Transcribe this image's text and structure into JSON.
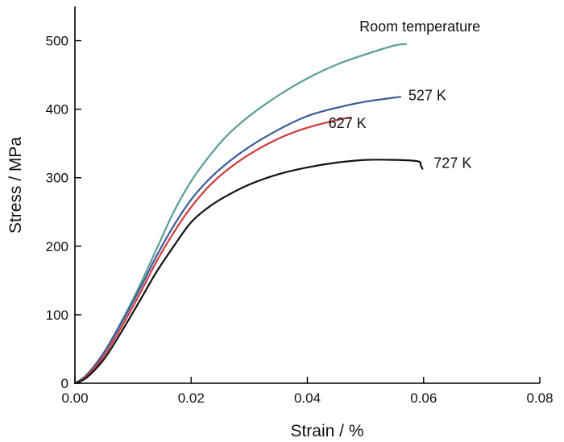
{
  "chart_data": {
    "type": "line",
    "title": "",
    "xlabel": "Strain / %",
    "ylabel": "Stress / MPa",
    "xlim": [
      0,
      0.08
    ],
    "ylim": [
      0,
      550
    ],
    "xticks": [
      0,
      0.02,
      0.04,
      0.06,
      0.08
    ],
    "xtick_labels": [
      "0.00",
      "0.02",
      "0.04",
      "0.06",
      "0.08"
    ],
    "yticks": [
      0,
      100,
      200,
      300,
      400,
      500
    ],
    "ytick_labels": [
      "0",
      "100",
      "200",
      "300",
      "400",
      "500"
    ],
    "grid": false,
    "legend": "none",
    "series": [
      {
        "name": "Room temperature",
        "color": "#5a9e96",
        "x": [
          0,
          0.002,
          0.005,
          0.008,
          0.011,
          0.014,
          0.017,
          0.02,
          0.023,
          0.026,
          0.03,
          0.035,
          0.04,
          0.045,
          0.05,
          0.055,
          0.057
        ],
        "y": [
          0,
          12,
          45,
          90,
          140,
          195,
          250,
          295,
          330,
          360,
          390,
          420,
          445,
          465,
          480,
          493,
          495
        ]
      },
      {
        "name": "527 K",
        "color": "#3a5a9a",
        "x": [
          0,
          0.002,
          0.005,
          0.008,
          0.011,
          0.014,
          0.017,
          0.02,
          0.023,
          0.026,
          0.03,
          0.035,
          0.04,
          0.045,
          0.05,
          0.056
        ],
        "y": [
          0,
          12,
          45,
          88,
          135,
          185,
          230,
          268,
          297,
          320,
          345,
          370,
          390,
          402,
          411,
          418
        ]
      },
      {
        "name": "627 K",
        "color": "#d03a3a",
        "x": [
          0,
          0.002,
          0.005,
          0.008,
          0.011,
          0.014,
          0.017,
          0.02,
          0.023,
          0.026,
          0.03,
          0.035,
          0.04,
          0.045,
          0.0475
        ],
        "y": [
          0,
          10,
          40,
          82,
          128,
          177,
          220,
          257,
          287,
          310,
          334,
          357,
          373,
          384,
          388
        ]
      },
      {
        "name": "727 K",
        "color": "#111111",
        "x": [
          0,
          0.002,
          0.005,
          0.008,
          0.011,
          0.014,
          0.017,
          0.02,
          0.023,
          0.026,
          0.03,
          0.035,
          0.04,
          0.045,
          0.05,
          0.055,
          0.059,
          0.0595,
          0.0598
        ],
        "y": [
          0,
          8,
          35,
          75,
          118,
          162,
          200,
          235,
          257,
          273,
          290,
          305,
          315,
          322,
          326,
          326,
          324,
          318,
          313
        ]
      }
    ],
    "annotations": [
      {
        "text": "Room temperature",
        "series": "Room temperature"
      },
      {
        "text": "527 K",
        "series": "527 K"
      },
      {
        "text": "627 K",
        "series": "627 K"
      },
      {
        "text": "727 K",
        "series": "727 K"
      }
    ]
  }
}
